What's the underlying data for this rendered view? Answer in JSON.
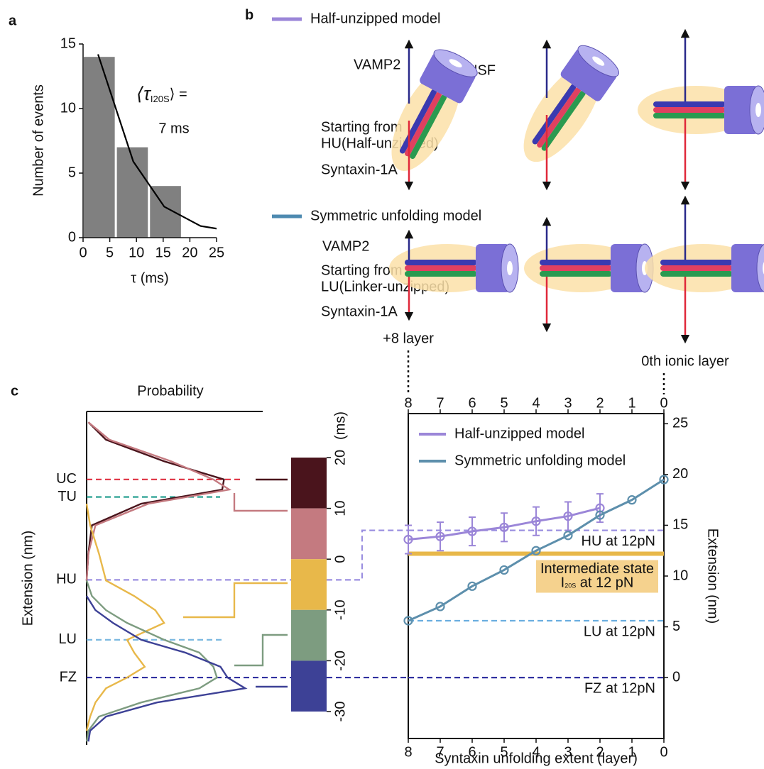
{
  "panel_labels": [
    "a",
    "b",
    "c"
  ],
  "chart_data": [
    {
      "type": "histogram",
      "bins": [
        0,
        6.2,
        12.4,
        18.6
      ],
      "values": [
        14,
        7,
        4
      ],
      "color": "#808080",
      "xlim": [
        0,
        25
      ],
      "ylim": [
        0,
        15
      ],
      "xticks": [
        0,
        5,
        10,
        15,
        20,
        25
      ],
      "yticks": [
        0,
        5,
        10,
        15
      ],
      "xlabel": "τ (ms)",
      "ylabel": "Number of events",
      "fit": {
        "x": [
          2.8,
          9.4,
          15.2,
          22,
          25
        ],
        "y": [
          14.2,
          5.9,
          2.4,
          0.9,
          0.7
        ],
        "color": "#000000"
      },
      "annotation": {
        "symbol": "⟨τ",
        "subscript": "I20S",
        "suffix": "⟩ =",
        "value": "7 ms"
      }
    },
    {
      "type": "line",
      "orientation": "horizontal",
      "title": "Probability",
      "ylabel": "Extension (nm)",
      "xlim": [
        0,
        1
      ],
      "ylim": [
        -10,
        39.5
      ],
      "y": [
        37.9,
        35.3,
        32.1,
        29.4,
        27.9,
        25.8,
        22.6,
        18.4,
        14.4,
        12.1,
        10.0,
        8.1,
        5.6,
        3.7,
        1.6,
        0,
        -1.6,
        -3.7,
        -5.8,
        -7.9,
        -9.5
      ],
      "series": [
        {
          "color": "#4a141c",
          "values": [
            0.01,
            0.11,
            0.44,
            0.78,
            0.77,
            0.31,
            0.03,
            0.01,
            0,
            null,
            null,
            null,
            null,
            null,
            null,
            null,
            null,
            null,
            null,
            null,
            null
          ]
        },
        {
          "color": "#c47a80",
          "values": [
            0.01,
            0.13,
            0.48,
            0.72,
            0.81,
            0.35,
            0.05,
            0.01,
            0,
            null,
            null,
            null,
            null,
            null,
            null,
            null,
            null,
            null,
            null,
            null,
            null
          ]
        },
        {
          "color": "#e8b84a",
          "values": [
            null,
            null,
            null,
            null,
            null,
            0,
            0.02,
            0.07,
            0.11,
            0.27,
            0.39,
            0.44,
            0.23,
            0.27,
            0.33,
            0.23,
            0.11,
            0.05,
            0.02,
            0,
            null
          ]
        },
        {
          "color": "#7d9c80",
          "values": [
            null,
            null,
            null,
            null,
            null,
            null,
            null,
            null,
            0,
            0.03,
            0.11,
            0.23,
            0.44,
            0.64,
            0.72,
            0.74,
            0.64,
            0.31,
            0.07,
            0.01,
            0
          ]
        },
        {
          "color": "#3d4196",
          "values": [
            null,
            null,
            null,
            null,
            null,
            null,
            null,
            null,
            null,
            0,
            0.05,
            0.15,
            0.31,
            0.56,
            0.76,
            0.8,
            0.9,
            0.4,
            0.11,
            0.02,
            0.01
          ]
        }
      ],
      "states": [
        {
          "label": "UC",
          "value": 29.4,
          "color": "#e03a4a"
        },
        {
          "label": "TU",
          "value": 26.8,
          "color": "#1a9a8a"
        },
        {
          "label": "HU",
          "value": 14.5,
          "color": "#9b8fe0"
        },
        {
          "label": "LU",
          "value": 5.6,
          "color": "#7ab8e0"
        },
        {
          "label": "FZ",
          "value": 0,
          "color": "#3030a0"
        }
      ],
      "colorbar": {
        "ticks": [
          20,
          10,
          0,
          -10,
          -20,
          -30
        ],
        "label": "(ms)"
      }
    },
    {
      "type": "line",
      "xlabel": "Syntaxin unfolding extent (layer)",
      "ylabel": "Extension (nm)",
      "xlim": [
        8,
        0
      ],
      "ylim": [
        -6,
        26
      ],
      "xticks": [
        8,
        7,
        6,
        5,
        4,
        3,
        2,
        1,
        0
      ],
      "yticks": [
        0,
        5,
        10,
        15,
        20,
        25
      ],
      "series": [
        {
          "name": "Half-unzipped model",
          "color": "#9b86d8",
          "x": [
            8,
            7,
            6,
            5,
            4,
            3,
            2
          ],
          "values": [
            13.6,
            13.9,
            14.4,
            14.8,
            15.4,
            15.9,
            16.7
          ],
          "errors": [
            1.4,
            1.4,
            1.4,
            1.4,
            1.4,
            1.4,
            1.4
          ]
        },
        {
          "name": "Symmetric unfolding model",
          "color": "#5d8fac",
          "x": [
            8,
            7,
            6,
            5,
            4,
            3,
            2,
            1,
            0
          ],
          "values": [
            5.6,
            7,
            9,
            10.6,
            12.5,
            14,
            16,
            17.5,
            19.5
          ]
        }
      ],
      "hlines": [
        {
          "value": 14.5,
          "label": "HU at 12pN",
          "color": "#9b8fe0"
        },
        {
          "value": 5.6,
          "label": "LU at 12pN",
          "color": "#6aaee0"
        },
        {
          "value": 0,
          "label": "FZ at 12pN",
          "color": "#3030a0"
        }
      ],
      "intermediate": {
        "value": 12.2,
        "color": "#e8b84a",
        "box_color": "#f5d28e",
        "line1": "Intermediate state",
        "prefix": "I",
        "subscript": "20S",
        "suffix": " at 12 pN"
      },
      "top_annotations": [
        {
          "x": 8,
          "label": "+8 layer"
        },
        {
          "x": 0,
          "label": "0th ionic layer"
        }
      ]
    }
  ],
  "diagram": {
    "rows": [
      {
        "legend": "Half-unzipped model",
        "color": "#9b86d8",
        "vamp": "VAMP2",
        "nsf": "NSF",
        "start": [
          "Starting from",
          "HU(Half-unzipped)"
        ],
        "syntaxin": "Syntaxin-1A"
      },
      {
        "legend": "Symmetric unfolding model",
        "color": "#4d8ab0",
        "vamp": "VAMP2",
        "start": [
          "Starting from",
          "LU(Linker-unzipped)"
        ],
        "syntaxin": "Syntaxin-1A"
      }
    ]
  }
}
